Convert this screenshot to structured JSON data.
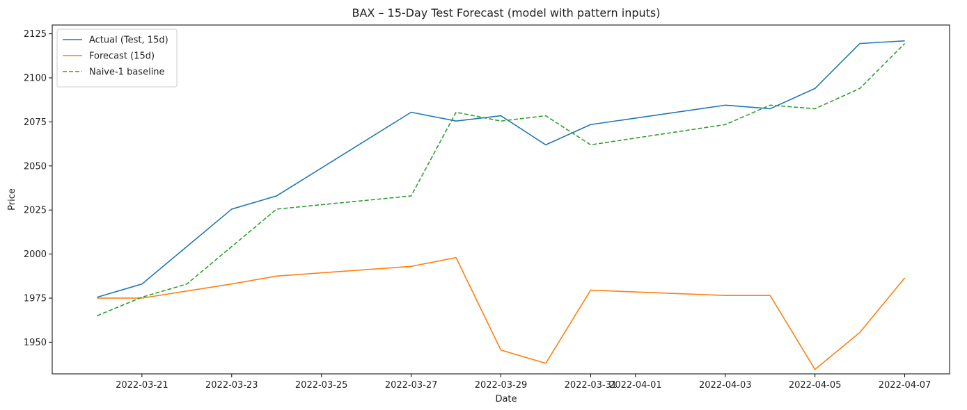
{
  "chart_data": {
    "type": "line",
    "title": "BAX – 15-Day Test Forecast (model with pattern inputs)",
    "xlabel": "Date",
    "ylabel": "Price",
    "x_ticks": [
      "2022-03-21",
      "2022-03-23",
      "2022-03-25",
      "2022-03-27",
      "2022-03-29",
      "2022-03-31",
      "2022-04-01",
      "2022-04-03",
      "2022-04-05",
      "2022-04-07"
    ],
    "y_ticks": [
      1950,
      1975,
      2000,
      2025,
      2050,
      2075,
      2100,
      2125
    ],
    "xlim": [
      "2022-03-19",
      "2022-04-08"
    ],
    "ylim": [
      1932,
      2130
    ],
    "grid": false,
    "legend_position": "top-left",
    "series": [
      {
        "name": "Actual (Test, 15d)",
        "color": "#1f77b4",
        "style": "solid",
        "points": [
          {
            "x": "2022-03-20",
            "y": 1975.5
          },
          {
            "x": "2022-03-21",
            "y": 1983
          },
          {
            "x": "2022-03-23",
            "y": 2025.5
          },
          {
            "x": "2022-03-24",
            "y": 2033
          },
          {
            "x": "2022-03-27",
            "y": 2080.5
          },
          {
            "x": "2022-03-28",
            "y": 2075.5
          },
          {
            "x": "2022-03-29",
            "y": 2078.5
          },
          {
            "x": "2022-03-30",
            "y": 2062
          },
          {
            "x": "2022-03-31",
            "y": 2073.5
          },
          {
            "x": "2022-04-03",
            "y": 2084.5
          },
          {
            "x": "2022-04-04",
            "y": 2082.5
          },
          {
            "x": "2022-04-05",
            "y": 2094
          },
          {
            "x": "2022-04-06",
            "y": 2119.5
          },
          {
            "x": "2022-04-07",
            "y": 2121
          }
        ]
      },
      {
        "name": "Forecast (15d)",
        "color": "#ff7f0e",
        "style": "solid",
        "points": [
          {
            "x": "2022-03-20",
            "y": 1975
          },
          {
            "x": "2022-03-21",
            "y": 1975
          },
          {
            "x": "2022-03-23",
            "y": 1983
          },
          {
            "x": "2022-03-24",
            "y": 1987.5
          },
          {
            "x": "2022-03-27",
            "y": 1993
          },
          {
            "x": "2022-03-28",
            "y": 1998
          },
          {
            "x": "2022-03-29",
            "y": 1945.5
          },
          {
            "x": "2022-03-30",
            "y": 1938
          },
          {
            "x": "2022-03-31",
            "y": 1979.5
          },
          {
            "x": "2022-04-03",
            "y": 1976.5
          },
          {
            "x": "2022-04-04",
            "y": 1976.5
          },
          {
            "x": "2022-04-05",
            "y": 1934.5
          },
          {
            "x": "2022-04-06",
            "y": 1955.5
          },
          {
            "x": "2022-04-07",
            "y": 1986.5
          }
        ]
      },
      {
        "name": "Naive-1 baseline",
        "color": "#2ca02c",
        "style": "dashed",
        "points": [
          {
            "x": "2022-03-20",
            "y": 1965
          },
          {
            "x": "2022-03-21",
            "y": 1975.5
          },
          {
            "x": "2022-03-22",
            "y": 1983
          },
          {
            "x": "2022-03-24",
            "y": 2025.5
          },
          {
            "x": "2022-03-27",
            "y": 2033
          },
          {
            "x": "2022-03-28",
            "y": 2080.5
          },
          {
            "x": "2022-03-29",
            "y": 2075.5
          },
          {
            "x": "2022-03-30",
            "y": 2078.5
          },
          {
            "x": "2022-03-31",
            "y": 2062
          },
          {
            "x": "2022-04-03",
            "y": 2073.5
          },
          {
            "x": "2022-04-04",
            "y": 2084.5
          },
          {
            "x": "2022-04-05",
            "y": 2082.5
          },
          {
            "x": "2022-04-06",
            "y": 2094
          },
          {
            "x": "2022-04-07",
            "y": 2119.5
          }
        ]
      }
    ]
  }
}
